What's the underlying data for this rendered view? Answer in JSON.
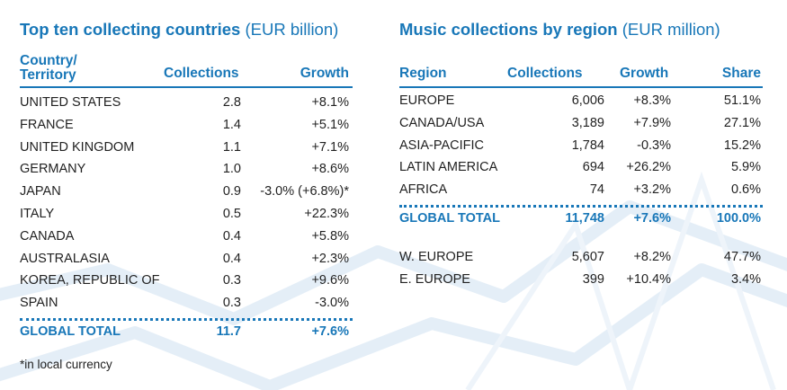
{
  "left_table": {
    "title": "Top ten collecting countries",
    "unit": "(EUR billion)",
    "headers": {
      "country_line1": "Country/",
      "country_line2": "Territory",
      "collections": "Collections",
      "growth": "Growth"
    },
    "rows": [
      {
        "country": "UNITED STATES",
        "collections": "2.8",
        "growth": "+8.1%"
      },
      {
        "country": "FRANCE",
        "collections": "1.4",
        "growth": "+5.1%"
      },
      {
        "country": "UNITED KINGDOM",
        "collections": "1.1",
        "growth": "+7.1%"
      },
      {
        "country": "GERMANY",
        "collections": "1.0",
        "growth": "+8.6%"
      },
      {
        "country": "JAPAN",
        "collections": "0.9",
        "growth": "-3.0% (+6.8%)*"
      },
      {
        "country": "ITALY",
        "collections": "0.5",
        "growth": "+22.3%"
      },
      {
        "country": "CANADA",
        "collections": "0.4",
        "growth": "+5.8%"
      },
      {
        "country": "AUSTRALASIA",
        "collections": "0.4",
        "growth": "+2.3%"
      },
      {
        "country": "KOREA, REPUBLIC OF",
        "collections": "0.3",
        "growth": "+9.6%"
      },
      {
        "country": "SPAIN",
        "collections": "0.3",
        "growth": "-3.0%"
      }
    ],
    "total": {
      "label": "GLOBAL TOTAL",
      "collections": "11.7",
      "growth": "+7.6%"
    },
    "footnote": "*in local currency"
  },
  "right_table": {
    "title": "Music collections by region",
    "unit": "(EUR million)",
    "headers": {
      "region": "Region",
      "collections": "Collections",
      "growth": "Growth",
      "share": "Share"
    },
    "rows": [
      {
        "region": "EUROPE",
        "collections": "6,006",
        "growth": "+8.3%",
        "share": "51.1%"
      },
      {
        "region": "CANADA/USA",
        "collections": "3,189",
        "growth": "+7.9%",
        "share": "27.1%"
      },
      {
        "region": "ASIA-PACIFIC",
        "collections": "1,784",
        "growth": "-0.3%",
        "share": "15.2%"
      },
      {
        "region": "LATIN AMERICA",
        "collections": "694",
        "growth": "+26.2%",
        "share": "5.9%"
      },
      {
        "region": "AFRICA",
        "collections": "74",
        "growth": "+3.2%",
        "share": "0.6%"
      }
    ],
    "total": {
      "label": "GLOBAL TOTAL",
      "collections": "11,748",
      "growth": "+7.6%",
      "share": "100.0%"
    },
    "sub_rows": [
      {
        "region": "W. EUROPE",
        "collections": "5,607",
        "growth": "+8.2%",
        "share": "47.7%"
      },
      {
        "region": "E. EUROPE",
        "collections": "399",
        "growth": "+10.4%",
        "share": "3.4%"
      }
    ]
  },
  "colors": {
    "accent": "#1877b8",
    "text": "#222222",
    "decoration": "#e4eef7"
  }
}
